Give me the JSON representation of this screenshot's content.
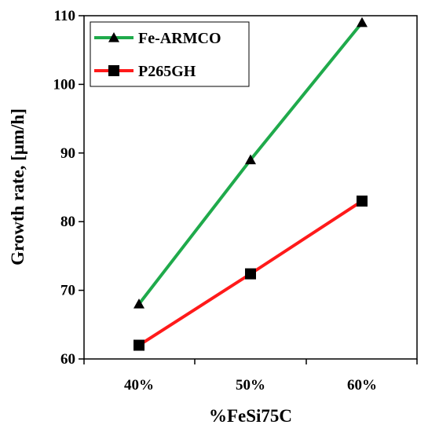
{
  "chart_data": {
    "type": "line",
    "categories": [
      "40%",
      "50%",
      "60%"
    ],
    "series": [
      {
        "name": "Fe-ARMCO",
        "values": [
          68,
          89,
          109
        ],
        "color": "#1faa4b",
        "marker": "triangle"
      },
      {
        "name": "P265GH",
        "values": [
          62,
          72.4,
          83
        ],
        "color": "#ff1a1a",
        "marker": "square"
      }
    ],
    "xlabel": "%FeSi75C",
    "ylabel": "Growth rate, [μm/h]",
    "ylim": [
      60,
      110
    ],
    "yticks": [
      60,
      70,
      80,
      90,
      100,
      110
    ],
    "grid": false,
    "legend": "top-left"
  }
}
